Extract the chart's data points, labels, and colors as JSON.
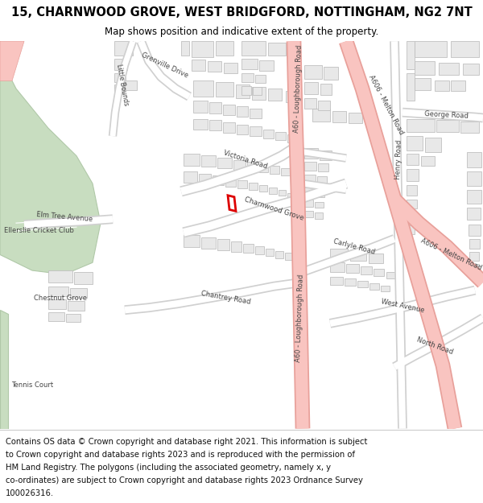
{
  "title": "15, CHARNWOOD GROVE, WEST BRIDGFORD, NOTTINGHAM, NG2 7NT",
  "subtitle": "Map shows position and indicative extent of the property.",
  "footer_lines": [
    "Contains OS data © Crown copyright and database right 2021. This information is subject",
    "to Crown copyright and database rights 2023 and is reproduced with the permission of",
    "HM Land Registry. The polygons (including the associated geometry, namely x, y",
    "co-ordinates) are subject to Crown copyright and database rights 2023 Ordnance Survey",
    "100026316."
  ],
  "map_bg": "#ffffff",
  "road_color": "#ffffff",
  "road_outline": "#d0d0d0",
  "a_road_color": "#f9c4c0",
  "a_road_outline": "#e8a09a",
  "building_fill": "#e8e8e8",
  "building_outline": "#c0c0c0",
  "highlight_outline": "#dd0000",
  "green_fill": "#c8ddc0",
  "green_outline": "#b0c8a8",
  "white_bg": "#ffffff",
  "title_fontsize": 10.5,
  "subtitle_fontsize": 8.5,
  "footer_fontsize": 7.2,
  "label_fontsize": 6.2,
  "label_color": "#444444"
}
